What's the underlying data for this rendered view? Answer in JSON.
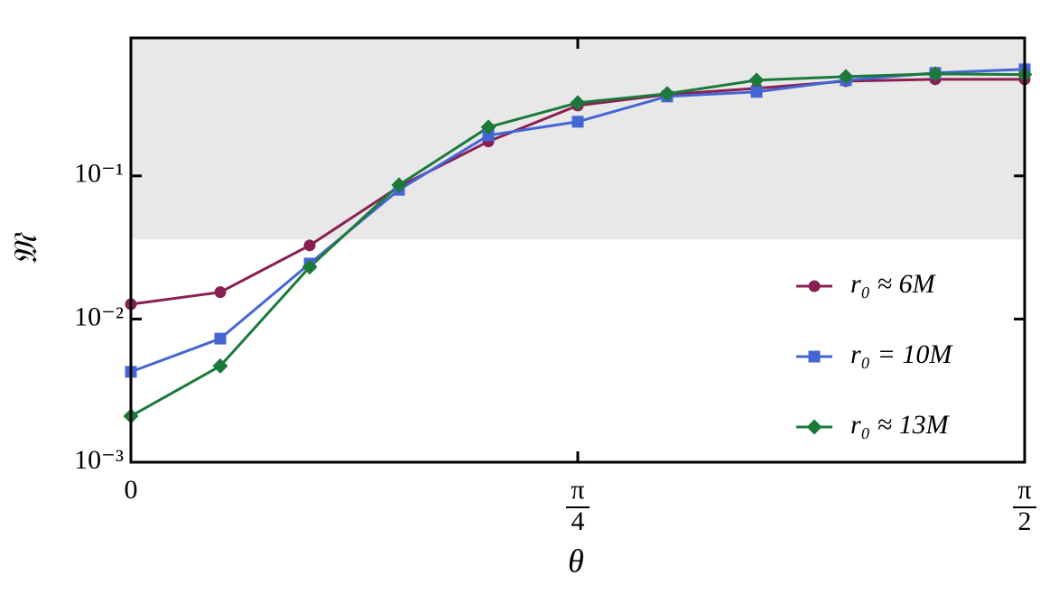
{
  "chart_data": {
    "type": "line",
    "x_label": "θ",
    "y_label": "𝔐",
    "x": [
      0,
      0.1571,
      0.3142,
      0.4712,
      0.6283,
      0.7854,
      0.9425,
      1.0996,
      1.2566,
      1.4137,
      1.5708
    ],
    "series": [
      {
        "name": "r₀ ≈ 6M",
        "color": "#8a1f52",
        "marker": "circle",
        "values": [
          0.0127,
          0.0154,
          0.0327,
          0.084,
          0.174,
          0.31,
          0.37,
          0.409,
          0.459,
          0.473,
          0.473
        ]
      },
      {
        "name": "r₀ = 10M",
        "color": "#4466d4",
        "marker": "square",
        "values": [
          0.00428,
          0.0073,
          0.0244,
          0.08,
          0.192,
          0.239,
          0.359,
          0.386,
          0.466,
          0.524,
          0.555
        ]
      },
      {
        "name": "r₀ ≈ 13M",
        "color": "#1b7a3a",
        "marker": "diamond",
        "values": [
          0.0021,
          0.0047,
          0.0231,
          0.0865,
          0.219,
          0.324,
          0.375,
          0.466,
          0.494,
          0.516,
          0.51
        ]
      }
    ],
    "xlim": [
      0,
      1.5708
    ],
    "xticks": [
      {
        "value": 0,
        "label": "0"
      },
      {
        "value": 0.7854,
        "label": "π/4"
      },
      {
        "value": 1.5708,
        "label": "π/2"
      }
    ],
    "ylim": [
      0.001,
      0.92
    ],
    "yscale": "log",
    "yticks": [
      {
        "value": 0.001,
        "label": "10⁻³"
      },
      {
        "value": 0.01,
        "label": "10⁻²"
      },
      {
        "value": 0.1,
        "label": "10⁻¹"
      }
    ],
    "shaded_band": {
      "from": 0.036,
      "color": "#e8e8e8"
    },
    "legend": "lower right"
  }
}
